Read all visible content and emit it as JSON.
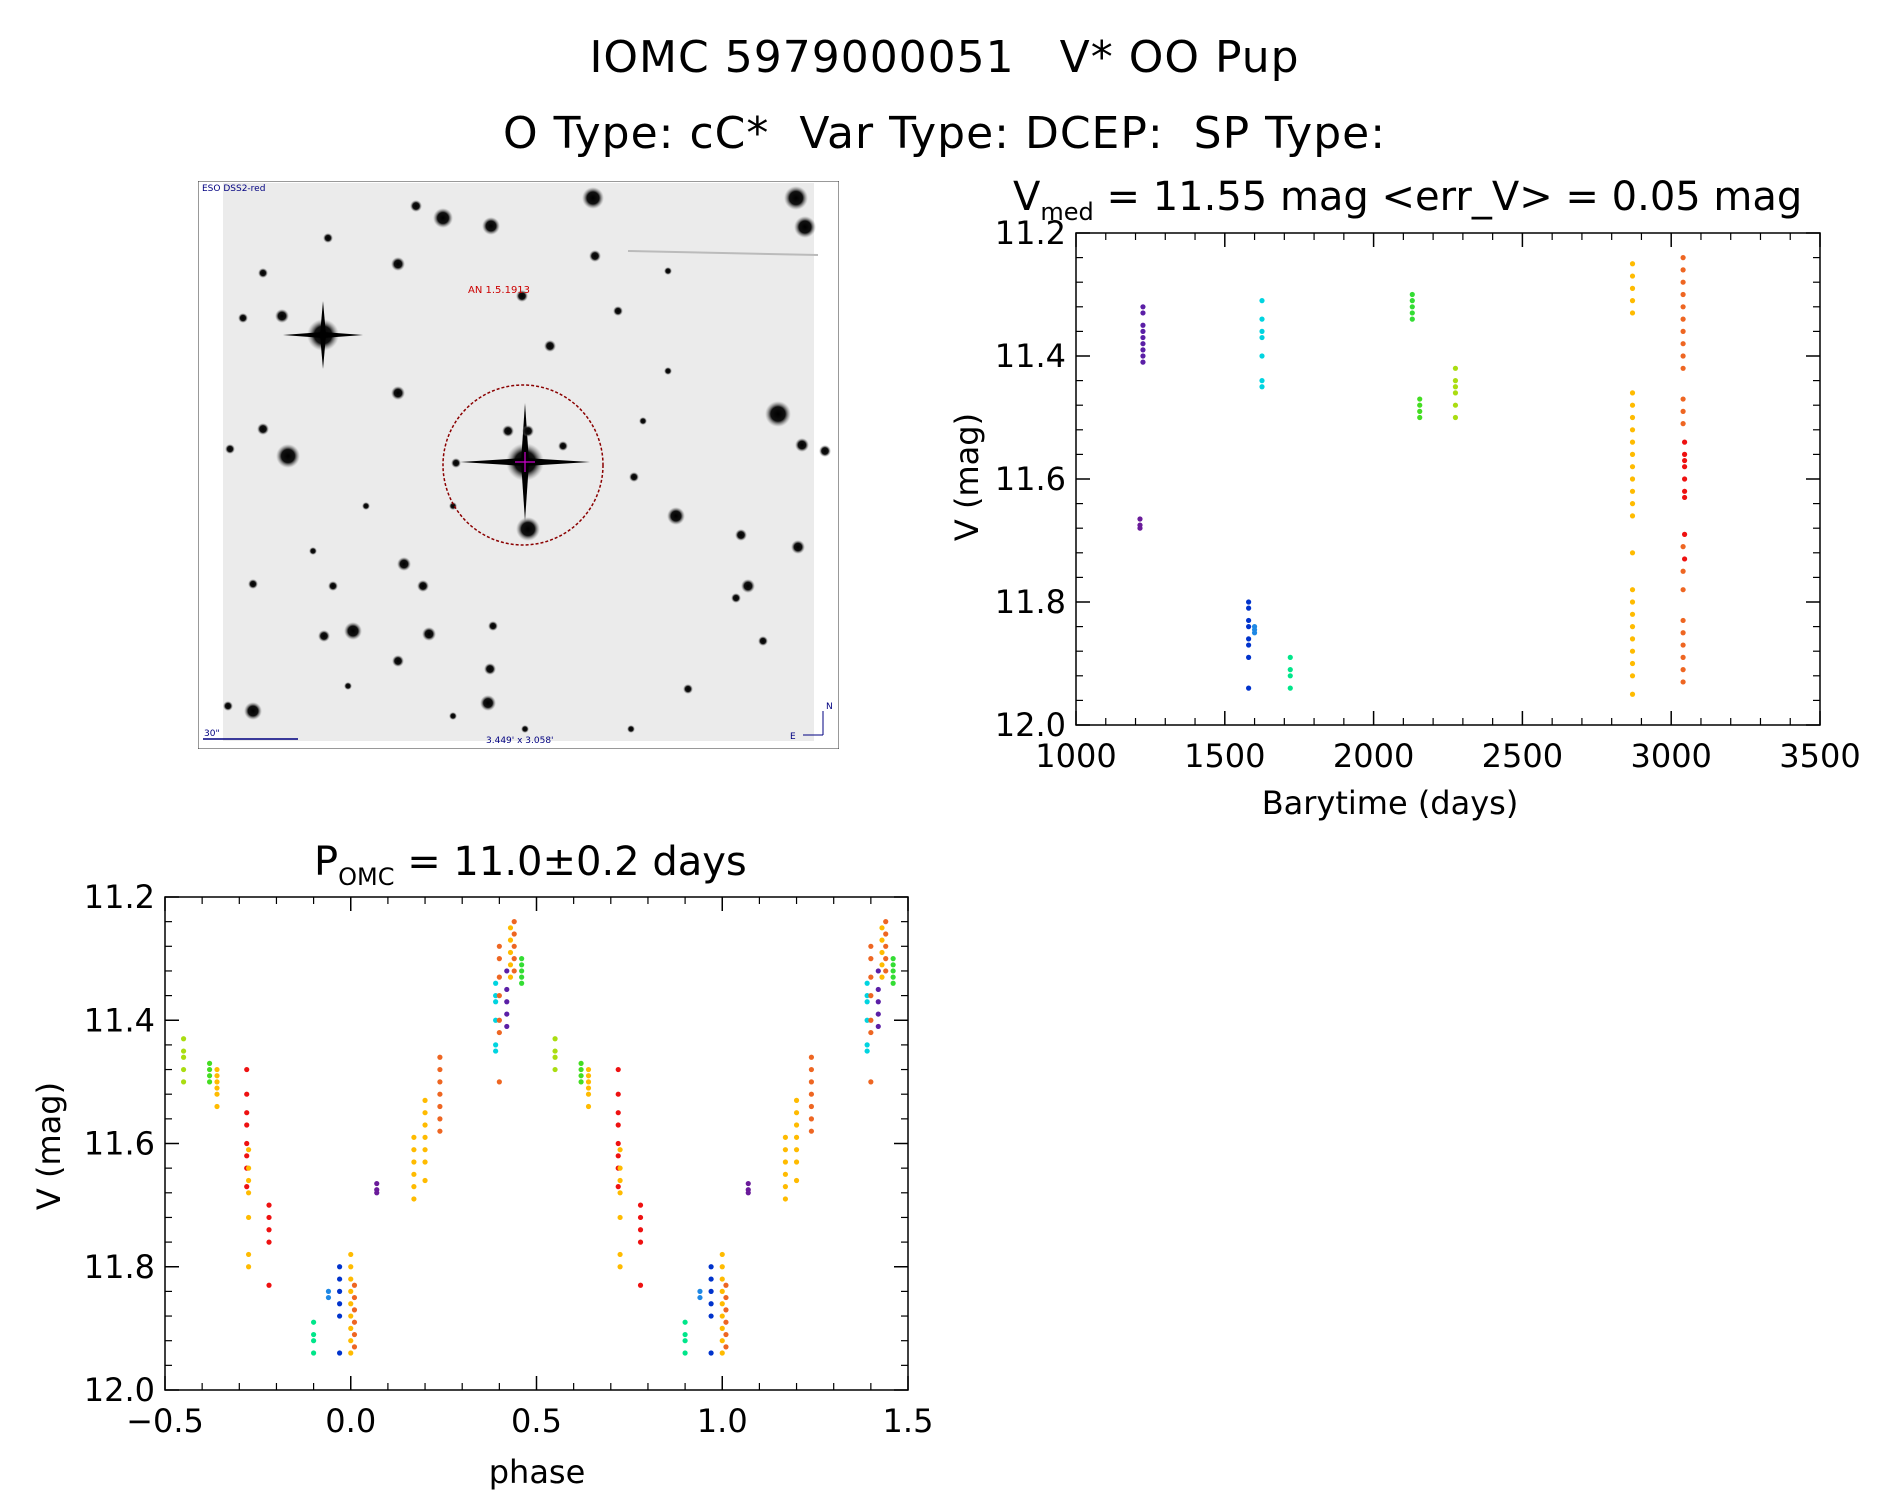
{
  "header": {
    "line1": "IOMC 5979000051   V* OO Pup",
    "line2": "O Type: cC*  Var Type: DCEP:  SP Type:"
  },
  "finder": {
    "survey_label": "ESO DSS2-red",
    "nearby_label": "AN 1.5.1913",
    "scale_label": "30\"",
    "fov_label": "3.449' x 3.058'",
    "north_label": "N",
    "east_label": "E"
  },
  "chart_data": [
    {
      "type": "scatter",
      "title_main": "V",
      "title_sub": "med",
      "title_rest": " = 11.55 mag <err_V> = 0.05 mag",
      "xlabel": "Barytime (days)",
      "ylabel": "V (mag)",
      "xlim": [
        1000,
        3500
      ],
      "ylim": [
        11.2,
        12.0
      ],
      "y_inverted": true,
      "xticks": [
        "1000",
        "1500",
        "2000",
        "2500",
        "3000",
        "3500"
      ],
      "yticks": [
        "11.2",
        "11.4",
        "11.6",
        "11.8",
        "12.0"
      ],
      "series": [
        {
          "name": "g1",
          "color": "#5b1fa6",
          "x": 1225,
          "values": [
            11.32,
            11.33,
            11.35,
            11.36,
            11.37,
            11.38,
            11.39,
            11.4,
            11.41
          ]
        },
        {
          "name": "g2",
          "color": "#6a1b9a",
          "x": 1215,
          "values": [
            11.665,
            11.675,
            11.68
          ]
        },
        {
          "name": "g3",
          "color": "#0033cc",
          "x": 1580,
          "values": [
            11.8,
            11.81,
            11.83,
            11.84,
            11.86,
            11.87,
            11.89,
            11.94
          ]
        },
        {
          "name": "g4",
          "color": "#1e88e5",
          "x": 1600,
          "values": [
            11.84,
            11.845,
            11.85
          ]
        },
        {
          "name": "g5",
          "color": "#00d4e0",
          "x": 1625,
          "values": [
            11.31,
            11.34,
            11.36,
            11.37,
            11.4,
            11.44,
            11.45
          ]
        },
        {
          "name": "g6",
          "color": "#00e68a",
          "x": 1720,
          "values": [
            11.89,
            11.91,
            11.92,
            11.94
          ]
        },
        {
          "name": "g7",
          "color": "#33dd33",
          "x": 2130,
          "values": [
            11.3,
            11.31,
            11.32,
            11.33,
            11.34
          ]
        },
        {
          "name": "g8",
          "color": "#44dd22",
          "x": 2155,
          "values": [
            11.47,
            11.48,
            11.49,
            11.5
          ]
        },
        {
          "name": "g9",
          "color": "#aadd11",
          "x": 2275,
          "values": [
            11.42,
            11.44,
            11.45,
            11.46,
            11.48,
            11.5
          ]
        },
        {
          "name": "g10",
          "color": "#ffbb00",
          "x": 2870,
          "values": [
            11.25,
            11.27,
            11.29,
            11.31,
            11.33,
            11.46,
            11.48,
            11.5,
            11.52,
            11.54,
            11.56,
            11.58,
            11.6,
            11.62,
            11.64,
            11.66,
            11.72,
            11.78,
            11.8,
            11.82,
            11.84,
            11.86,
            11.88,
            11.9,
            11.92,
            11.95
          ]
        },
        {
          "name": "g11",
          "color": "#ee6622",
          "x": 3040,
          "values": [
            11.24,
            11.26,
            11.28,
            11.3,
            11.32,
            11.34,
            11.36,
            11.38,
            11.4,
            11.42,
            11.47,
            11.49,
            11.51,
            11.71,
            11.75,
            11.78,
            11.83,
            11.85,
            11.87,
            11.89,
            11.91,
            11.93
          ]
        },
        {
          "name": "g12",
          "color": "#ee1111",
          "x": 3045,
          "values": [
            11.54,
            11.56,
            11.57,
            11.58,
            11.6,
            11.62,
            11.63,
            11.69,
            11.73
          ]
        }
      ]
    },
    {
      "type": "scatter",
      "title_main": "P",
      "title_sub": "OMC",
      "title_rest": " = 11.0±0.2 days",
      "xlabel": "phase",
      "ylabel": "V (mag)",
      "xlim": [
        -0.5,
        1.5
      ],
      "ylim": [
        11.2,
        12.0
      ],
      "y_inverted": true,
      "xticks": [
        "−0.5",
        "0.0",
        "0.5",
        "1.0",
        "1.5"
      ],
      "yticks": [
        "11.2",
        "11.4",
        "11.6",
        "11.8",
        "12.0"
      ],
      "series": [
        {
          "name": "p1",
          "color": "#aadd11",
          "x": -0.45,
          "values": [
            11.43,
            11.45,
            11.46,
            11.48,
            11.5
          ]
        },
        {
          "name": "p2",
          "color": "#44dd22",
          "x": -0.38,
          "values": [
            11.47,
            11.48,
            11.49,
            11.5
          ]
        },
        {
          "name": "p3",
          "color": "#ffbb00",
          "x": -0.36,
          "values": [
            11.48,
            11.49,
            11.5,
            11.51,
            11.52,
            11.54
          ]
        },
        {
          "name": "p4",
          "color": "#ee1111",
          "x": -0.28,
          "values": [
            11.48,
            11.52,
            11.55,
            11.57,
            11.6,
            11.62,
            11.64,
            11.67
          ]
        },
        {
          "name": "p5",
          "color": "#ffbb00",
          "x": -0.275,
          "values": [
            11.61,
            11.64,
            11.66,
            11.68,
            11.72,
            11.78,
            11.8
          ]
        },
        {
          "name": "p6",
          "color": "#ee1111",
          "x": -0.22,
          "values": [
            11.7,
            11.72,
            11.74,
            11.76,
            11.83
          ]
        },
        {
          "name": "p7",
          "color": "#00e68a",
          "x": -0.1,
          "values": [
            11.89,
            11.91,
            11.92,
            11.94
          ]
        },
        {
          "name": "p8",
          "color": "#1e88e5",
          "x": -0.06,
          "values": [
            11.84,
            11.85
          ]
        },
        {
          "name": "p9",
          "color": "#0033cc",
          "x": -0.03,
          "values": [
            11.8,
            11.82,
            11.84,
            11.86,
            11.88,
            11.94
          ]
        },
        {
          "name": "p10",
          "color": "#ffbb00",
          "x": 0.0,
          "values": [
            11.78,
            11.8,
            11.82,
            11.84,
            11.86,
            11.88,
            11.9,
            11.92,
            11.94
          ]
        },
        {
          "name": "p11",
          "color": "#ee6622",
          "x": 0.01,
          "values": [
            11.83,
            11.85,
            11.87,
            11.89,
            11.91,
            11.93
          ]
        },
        {
          "name": "p12",
          "color": "#6a1b9a",
          "x": 0.07,
          "values": [
            11.665,
            11.675,
            11.68
          ]
        },
        {
          "name": "p13",
          "color": "#ffbb00",
          "x": 0.17,
          "values": [
            11.59,
            11.61,
            11.63,
            11.65,
            11.67,
            11.69
          ]
        },
        {
          "name": "p14",
          "color": "#ffbb00",
          "x": 0.2,
          "values": [
            11.53,
            11.55,
            11.57,
            11.59,
            11.61,
            11.63,
            11.66
          ]
        },
        {
          "name": "p15",
          "color": "#ee6622",
          "x": 0.24,
          "values": [
            11.46,
            11.48,
            11.5,
            11.52,
            11.54,
            11.56,
            11.58
          ]
        },
        {
          "name": "p16",
          "color": "#00d4e0",
          "x": 0.39,
          "values": [
            11.34,
            11.36,
            11.37,
            11.4,
            11.44,
            11.45
          ]
        },
        {
          "name": "p17",
          "color": "#ee6622",
          "x": 0.4,
          "values": [
            11.28,
            11.3,
            11.33,
            11.36,
            11.4,
            11.42,
            11.5
          ]
        },
        {
          "name": "p18",
          "color": "#5b1fa6",
          "x": 0.42,
          "values": [
            11.32,
            11.35,
            11.37,
            11.39,
            11.41
          ]
        },
        {
          "name": "p19",
          "color": "#ffbb00",
          "x": 0.43,
          "values": [
            11.25,
            11.27,
            11.29,
            11.31,
            11.33
          ]
        },
        {
          "name": "p20",
          "color": "#ee6622",
          "x": 0.44,
          "values": [
            11.24,
            11.26,
            11.28,
            11.3,
            11.32
          ]
        },
        {
          "name": "p21",
          "color": "#33dd33",
          "x": 0.46,
          "values": [
            11.3,
            11.31,
            11.32,
            11.33,
            11.34
          ]
        },
        {
          "name": "p22",
          "color": "#aadd11",
          "x": 0.55,
          "values": [
            11.43,
            11.45,
            11.46,
            11.48
          ]
        },
        {
          "name": "p23",
          "color": "#44dd22",
          "x": 0.62,
          "values": [
            11.47,
            11.48,
            11.49,
            11.5
          ]
        },
        {
          "name": "p24",
          "color": "#ffbb00",
          "x": 0.64,
          "values": [
            11.48,
            11.49,
            11.5,
            11.51,
            11.52,
            11.54
          ]
        },
        {
          "name": "p25",
          "color": "#ee1111",
          "x": 0.72,
          "values": [
            11.48,
            11.52,
            11.55,
            11.57,
            11.6,
            11.62,
            11.64,
            11.67
          ]
        },
        {
          "name": "p26",
          "color": "#ffbb00",
          "x": 0.725,
          "values": [
            11.61,
            11.64,
            11.66,
            11.68,
            11.72,
            11.78,
            11.8
          ]
        },
        {
          "name": "p27",
          "color": "#ee1111",
          "x": 0.78,
          "values": [
            11.7,
            11.72,
            11.74,
            11.76,
            11.83
          ]
        },
        {
          "name": "p28",
          "color": "#00e68a",
          "x": 0.9,
          "values": [
            11.89,
            11.91,
            11.92,
            11.94
          ]
        },
        {
          "name": "p29",
          "color": "#1e88e5",
          "x": 0.94,
          "values": [
            11.84,
            11.85
          ]
        },
        {
          "name": "p30",
          "color": "#0033cc",
          "x": 0.97,
          "values": [
            11.8,
            11.82,
            11.84,
            11.86,
            11.88,
            11.94
          ]
        },
        {
          "name": "p31",
          "color": "#ffbb00",
          "x": 1.0,
          "values": [
            11.78,
            11.8,
            11.82,
            11.84,
            11.86,
            11.88,
            11.9,
            11.92,
            11.94
          ]
        },
        {
          "name": "p32",
          "color": "#ee6622",
          "x": 1.01,
          "values": [
            11.83,
            11.85,
            11.87,
            11.89,
            11.91,
            11.93
          ]
        },
        {
          "name": "p33",
          "color": "#6a1b9a",
          "x": 1.07,
          "values": [
            11.665,
            11.675,
            11.68
          ]
        },
        {
          "name": "p34",
          "color": "#ffbb00",
          "x": 1.17,
          "values": [
            11.59,
            11.61,
            11.63,
            11.65,
            11.67,
            11.69
          ]
        },
        {
          "name": "p35",
          "color": "#ffbb00",
          "x": 1.2,
          "values": [
            11.53,
            11.55,
            11.57,
            11.59,
            11.61,
            11.63,
            11.66
          ]
        },
        {
          "name": "p36",
          "color": "#ee6622",
          "x": 1.24,
          "values": [
            11.46,
            11.48,
            11.5,
            11.52,
            11.54,
            11.56,
            11.58
          ]
        },
        {
          "name": "p37",
          "color": "#00d4e0",
          "x": 1.39,
          "values": [
            11.34,
            11.36,
            11.37,
            11.4,
            11.44,
            11.45
          ]
        },
        {
          "name": "p38",
          "color": "#ee6622",
          "x": 1.4,
          "values": [
            11.28,
            11.3,
            11.33,
            11.36,
            11.4,
            11.42,
            11.5
          ]
        },
        {
          "name": "p39",
          "color": "#5b1fa6",
          "x": 1.42,
          "values": [
            11.32,
            11.35,
            11.37,
            11.39,
            11.41
          ]
        },
        {
          "name": "p40",
          "color": "#ffbb00",
          "x": 1.43,
          "values": [
            11.25,
            11.27,
            11.29,
            11.31,
            11.33
          ]
        },
        {
          "name": "p41",
          "color": "#ee6622",
          "x": 1.44,
          "values": [
            11.24,
            11.26,
            11.28,
            11.3,
            11.32
          ]
        },
        {
          "name": "p42",
          "color": "#33dd33",
          "x": 1.46,
          "values": [
            11.3,
            11.31,
            11.32,
            11.33,
            11.34
          ]
        }
      ]
    }
  ]
}
